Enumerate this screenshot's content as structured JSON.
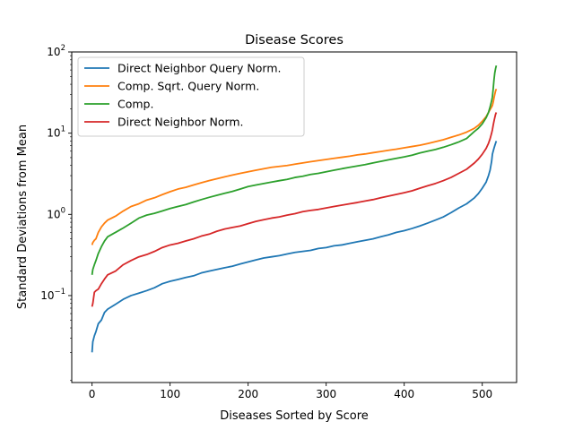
{
  "chart_data": {
    "type": "line",
    "title": "Disease Scores",
    "xlabel": "Diseases Sorted by Score",
    "ylabel": "Standard Deviations from Mean",
    "xscale": "linear",
    "yscale": "log",
    "xlim": [
      -26,
      544
    ],
    "ylim": [
      0.0085,
      100
    ],
    "xticks": [
      0,
      100,
      200,
      300,
      400,
      500
    ],
    "yticks": [
      {
        "value": 0.1,
        "base": "10",
        "exp": "−1"
      },
      {
        "value": 1,
        "base": "10",
        "exp": "0"
      },
      {
        "value": 10,
        "base": "10",
        "exp": "1"
      },
      {
        "value": 100,
        "base": "10",
        "exp": "2"
      }
    ],
    "legend_position": "top-left",
    "series": [
      {
        "name": "Direct Neighbor Query Norm.",
        "color": "#1f77b4",
        "x": [
          0,
          1,
          3,
          5,
          8,
          12,
          16,
          20,
          30,
          40,
          50,
          60,
          70,
          80,
          90,
          100,
          110,
          120,
          130,
          140,
          150,
          160,
          170,
          180,
          190,
          200,
          210,
          220,
          230,
          240,
          250,
          260,
          270,
          280,
          290,
          300,
          310,
          320,
          330,
          340,
          350,
          360,
          370,
          380,
          390,
          400,
          410,
          420,
          430,
          440,
          450,
          460,
          470,
          480,
          490,
          495,
          500,
          505,
          508,
          510,
          512,
          513,
          514,
          515,
          516,
          517,
          518
        ],
        "y": [
          0.02,
          0.027,
          0.032,
          0.036,
          0.045,
          0.05,
          0.062,
          0.068,
          0.078,
          0.09,
          0.1,
          0.107,
          0.115,
          0.125,
          0.14,
          0.15,
          0.158,
          0.167,
          0.175,
          0.19,
          0.2,
          0.21,
          0.22,
          0.23,
          0.245,
          0.26,
          0.275,
          0.29,
          0.3,
          0.31,
          0.325,
          0.34,
          0.35,
          0.36,
          0.38,
          0.39,
          0.41,
          0.42,
          0.44,
          0.46,
          0.48,
          0.5,
          0.53,
          0.56,
          0.6,
          0.63,
          0.67,
          0.72,
          0.78,
          0.85,
          0.93,
          1.05,
          1.2,
          1.35,
          1.6,
          1.8,
          2.1,
          2.5,
          3.0,
          3.5,
          4.5,
          5.5,
          6.0,
          6.5,
          7.0,
          7.5,
          8.0
        ]
      },
      {
        "name": "Comp. Sqrt. Query Norm.",
        "color": "#ff7f0e",
        "x": [
          0,
          1,
          3,
          5,
          8,
          12,
          16,
          20,
          30,
          40,
          50,
          60,
          70,
          80,
          90,
          100,
          110,
          120,
          130,
          140,
          150,
          160,
          170,
          180,
          190,
          200,
          210,
          220,
          230,
          240,
          250,
          260,
          270,
          280,
          290,
          300,
          310,
          320,
          330,
          340,
          350,
          360,
          370,
          380,
          390,
          400,
          410,
          420,
          430,
          440,
          450,
          460,
          470,
          480,
          490,
          495,
          500,
          505,
          508,
          510,
          512,
          513,
          514,
          515,
          516,
          517,
          518
        ],
        "y": [
          0.42,
          0.45,
          0.48,
          0.5,
          0.6,
          0.7,
          0.78,
          0.85,
          0.95,
          1.1,
          1.25,
          1.35,
          1.5,
          1.6,
          1.75,
          1.9,
          2.05,
          2.15,
          2.3,
          2.45,
          2.6,
          2.75,
          2.9,
          3.05,
          3.2,
          3.35,
          3.5,
          3.65,
          3.8,
          3.9,
          4.0,
          4.15,
          4.3,
          4.45,
          4.6,
          4.75,
          4.9,
          5.05,
          5.2,
          5.4,
          5.55,
          5.75,
          5.95,
          6.15,
          6.35,
          6.6,
          6.85,
          7.1,
          7.45,
          7.85,
          8.3,
          8.9,
          9.5,
          10.3,
          11.5,
          12.5,
          14.0,
          16.0,
          18.0,
          19.5,
          21.0,
          22.0,
          24.0,
          27.0,
          30.0,
          33.0,
          35.0
        ]
      },
      {
        "name": "Comp.",
        "color": "#2ca02c",
        "x": [
          0,
          1,
          3,
          5,
          8,
          12,
          16,
          20,
          30,
          40,
          50,
          60,
          70,
          80,
          90,
          100,
          110,
          120,
          130,
          140,
          150,
          160,
          170,
          180,
          190,
          200,
          210,
          220,
          230,
          240,
          250,
          260,
          270,
          280,
          290,
          300,
          310,
          320,
          330,
          340,
          350,
          360,
          370,
          380,
          390,
          400,
          410,
          420,
          430,
          440,
          450,
          460,
          470,
          480,
          490,
          495,
          500,
          505,
          508,
          510,
          512,
          513,
          514,
          515,
          516,
          517,
          518
        ],
        "y": [
          0.18,
          0.21,
          0.24,
          0.27,
          0.33,
          0.4,
          0.47,
          0.53,
          0.6,
          0.68,
          0.78,
          0.9,
          0.98,
          1.03,
          1.1,
          1.18,
          1.25,
          1.32,
          1.42,
          1.52,
          1.62,
          1.72,
          1.82,
          1.92,
          2.05,
          2.2,
          2.3,
          2.4,
          2.5,
          2.6,
          2.7,
          2.85,
          2.95,
          3.1,
          3.2,
          3.35,
          3.5,
          3.65,
          3.8,
          3.95,
          4.1,
          4.3,
          4.5,
          4.7,
          4.9,
          5.1,
          5.35,
          5.7,
          6.0,
          6.3,
          6.7,
          7.2,
          7.8,
          8.6,
          10.5,
          11.5,
          13.0,
          15.5,
          18.0,
          21.0,
          25.0,
          28.0,
          35.0,
          45.0,
          55.0,
          62.0,
          68.0
        ]
      },
      {
        "name": "Direct Neighbor Norm.",
        "color": "#d62728",
        "x": [
          0,
          1,
          3,
          5,
          8,
          12,
          16,
          20,
          30,
          40,
          50,
          60,
          70,
          80,
          90,
          100,
          110,
          120,
          130,
          140,
          150,
          160,
          170,
          180,
          190,
          200,
          210,
          220,
          230,
          240,
          250,
          260,
          270,
          280,
          290,
          300,
          310,
          320,
          330,
          340,
          350,
          360,
          370,
          380,
          390,
          400,
          410,
          420,
          430,
          440,
          450,
          460,
          470,
          480,
          490,
          495,
          500,
          505,
          508,
          510,
          512,
          513,
          514,
          515,
          516,
          517,
          518
        ],
        "y": [
          0.073,
          0.08,
          0.11,
          0.115,
          0.12,
          0.14,
          0.16,
          0.18,
          0.2,
          0.24,
          0.27,
          0.3,
          0.32,
          0.35,
          0.39,
          0.42,
          0.44,
          0.47,
          0.5,
          0.54,
          0.57,
          0.62,
          0.66,
          0.69,
          0.72,
          0.77,
          0.82,
          0.86,
          0.9,
          0.93,
          0.98,
          1.02,
          1.08,
          1.12,
          1.15,
          1.2,
          1.25,
          1.3,
          1.35,
          1.4,
          1.46,
          1.52,
          1.6,
          1.68,
          1.76,
          1.85,
          1.95,
          2.1,
          2.25,
          2.4,
          2.6,
          2.85,
          3.2,
          3.6,
          4.3,
          4.8,
          5.5,
          6.5,
          7.5,
          8.5,
          10.0,
          11.0,
          12.5,
          14.0,
          15.5,
          17.0,
          18.0
        ]
      }
    ]
  }
}
